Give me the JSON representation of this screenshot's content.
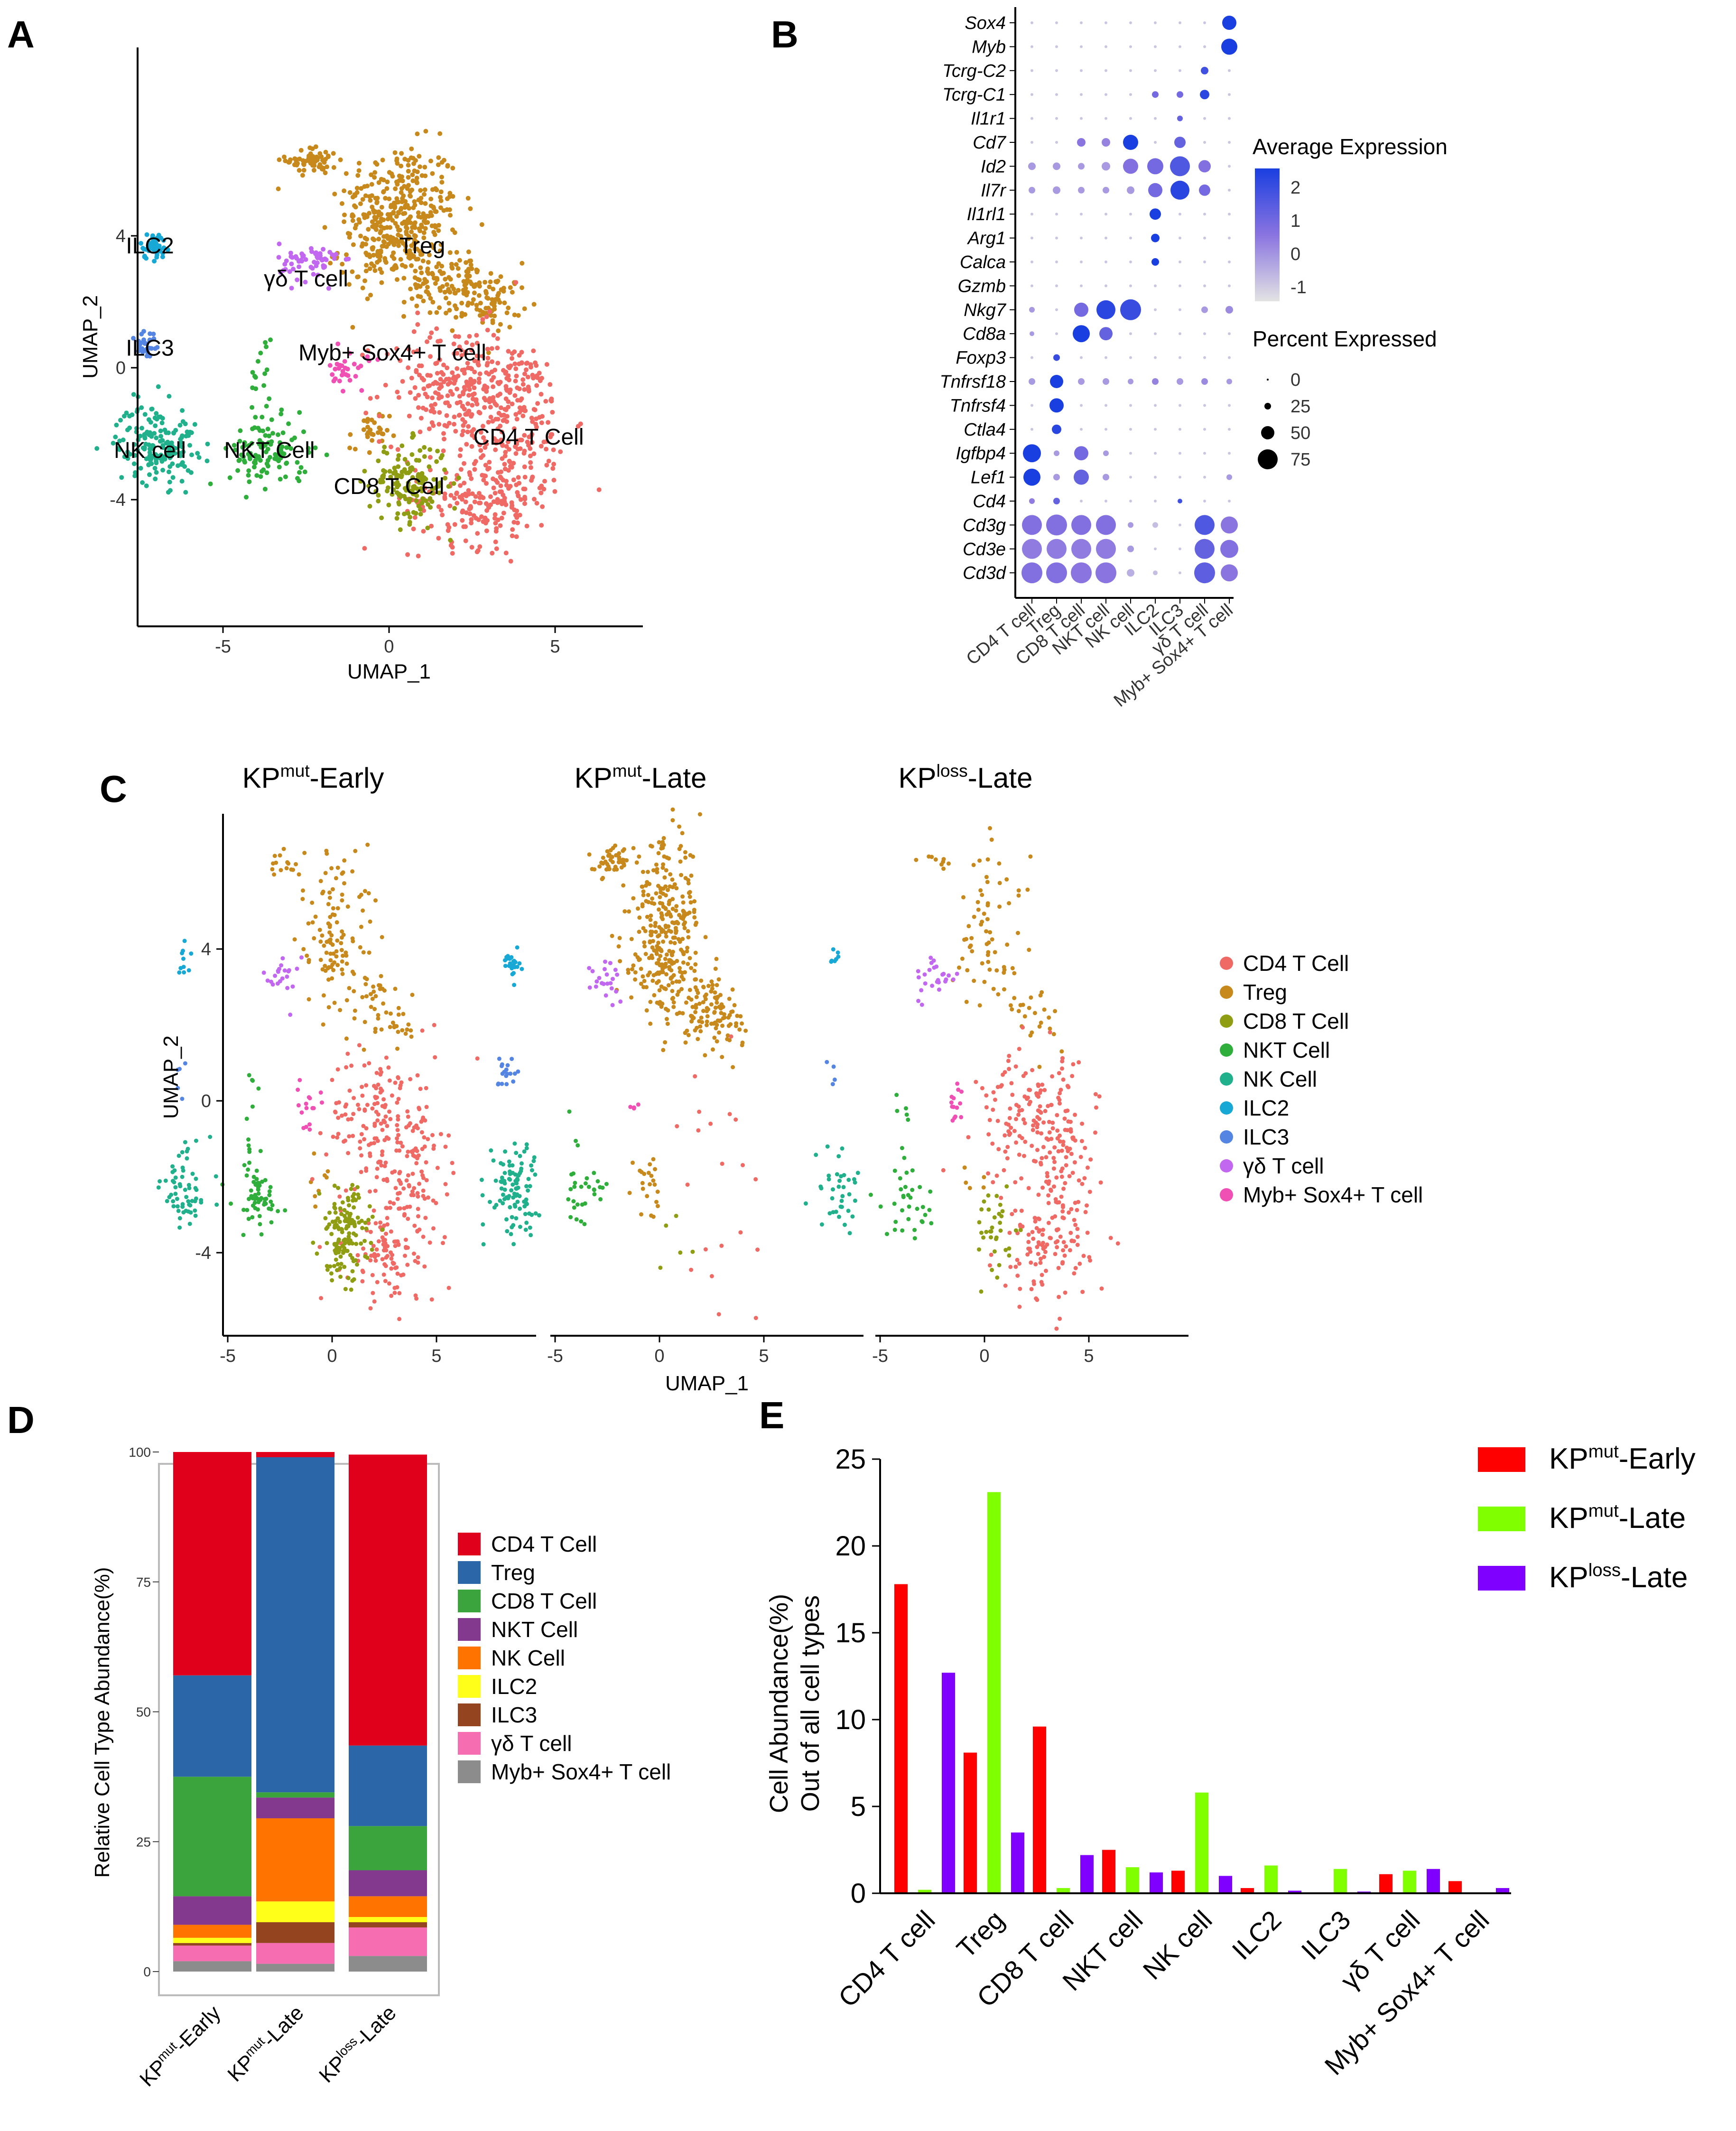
{
  "panels": {
    "A": "A",
    "B": "B",
    "C": "C",
    "D": "D",
    "E": "E"
  },
  "panel_a": {
    "xlabel": "UMAP_1",
    "ylabel": "UMAP_2",
    "xticks": [
      "-5",
      "0",
      "5"
    ],
    "yticks": [
      "4",
      "0",
      "-4"
    ],
    "cluster_labels": [
      {
        "text": "ILC2",
        "x": -7.2,
        "y": 3.7
      },
      {
        "text": "γδ T cell",
        "x": -2.5,
        "y": 2.7
      },
      {
        "text": "Treg",
        "x": 1,
        "y": 3.7
      },
      {
        "text": "ILC3",
        "x": -7.2,
        "y": 0.6
      },
      {
        "text": "Myb+ Sox4+ T cell",
        "x": 0.1,
        "y": 0.45
      },
      {
        "text": "CD4 T Cell",
        "x": 4.2,
        "y": -2.1
      },
      {
        "text": "NK cell",
        "x": -7.2,
        "y": -2.5
      },
      {
        "text": "NKT Cell",
        "x": -3.6,
        "y": -2.5
      },
      {
        "text": "CD8 T Cell",
        "x": 0,
        "y": -3.6
      }
    ]
  },
  "panel_b": {
    "genes": [
      "Sox4",
      "Myb",
      "Tcrg-C2",
      "Tcrg-C1",
      "Il1r1",
      "Cd7",
      "Id2",
      "Il7r",
      "Il1rl1",
      "Arg1",
      "Calca",
      "Gzmb",
      "Nkg7",
      "Cd8a",
      "Foxp3",
      "Tnfrsf18",
      "Tnfrsf4",
      "Ctla4",
      "Igfbp4",
      "Lef1",
      "Cd4",
      "Cd3g",
      "Cd3e",
      "Cd3d"
    ],
    "cell_types": [
      "CD4 T cell",
      "Treg",
      "CD8 T cell",
      "NKT cell",
      "NK cell",
      "ILC2",
      "ILC3",
      "γδ T cell",
      "Myb+ Sox4+ T cell"
    ],
    "legend_expr_title": "Average Expression",
    "legend_expr_ticks": [
      "2",
      "1",
      "0",
      "-1"
    ],
    "legend_pct_title": "Percent Expressed",
    "legend_pct_ticks": [
      "0",
      "25",
      "50",
      "75"
    ]
  },
  "panel_c": {
    "titles": [
      "KP^mut-Early",
      "KP^mut-Late",
      "KP^loss-Late"
    ],
    "title_parts": [
      {
        "pre": "KP",
        "sup": "mut",
        "post": "-Early"
      },
      {
        "pre": "KP",
        "sup": "mut",
        "post": "-Late"
      },
      {
        "pre": "KP",
        "sup": "loss",
        "post": "-Late"
      }
    ],
    "xlabel": "UMAP_1",
    "ylabel": "UMAP_2",
    "xticks": [
      "-5",
      "0",
      "5"
    ],
    "yticks": [
      "4",
      "0",
      "-4"
    ],
    "legend": [
      {
        "label": "CD4 T Cell",
        "color": "#ef6a65"
      },
      {
        "label": "Treg",
        "color": "#c8891c"
      },
      {
        "label": "CD8 T Cell",
        "color": "#8f9d12"
      },
      {
        "label": "NKT Cell",
        "color": "#2fae3c"
      },
      {
        "label": "NK Cell",
        "color": "#20b08c"
      },
      {
        "label": "ILC2",
        "color": "#18a8d6"
      },
      {
        "label": "ILC3",
        "color": "#5585e3"
      },
      {
        "label": "γδ T cell",
        "color": "#c267f0"
      },
      {
        "label": "Myb+ Sox4+ T cell",
        "color": "#f050b4"
      }
    ]
  },
  "chart_data": [
    {
      "type": "bar",
      "stacked": true,
      "title": "",
      "ylabel": "Relative Cell Type Abundance(%)",
      "ylim": [
        0,
        100
      ],
      "yticks": [
        "0",
        "25",
        "50",
        "75",
        "100"
      ],
      "categories": [
        "KPmut-Early",
        "KPmut-Late",
        "KPloss-Late"
      ],
      "category_parts": [
        {
          "pre": "KP",
          "sup": "mut",
          "post": "-Early"
        },
        {
          "pre": "KP",
          "sup": "mut",
          "post": "-Late"
        },
        {
          "pre": "KP",
          "sup": "loss",
          "post": "-Late"
        }
      ],
      "series": [
        {
          "name": "CD4 T Cell",
          "color": "#e0001b",
          "values": [
            43,
            1,
            56
          ]
        },
        {
          "name": "Treg",
          "color": "#2b66a8",
          "values": [
            19.5,
            64.5,
            15.5
          ]
        },
        {
          "name": "CD8 T Cell",
          "color": "#3ca43c",
          "values": [
            23,
            1,
            8.5
          ]
        },
        {
          "name": "NKT Cell",
          "color": "#833a8e",
          "values": [
            5.5,
            4,
            5
          ]
        },
        {
          "name": "NK Cell",
          "color": "#ff7300",
          "values": [
            2.5,
            16,
            4
          ]
        },
        {
          "name": "ILC2",
          "color": "#ffff1a",
          "values": [
            1,
            4,
            1
          ]
        },
        {
          "name": "ILC3",
          "color": "#94441e",
          "values": [
            0.5,
            4,
            1
          ]
        },
        {
          "name": "γδ T cell",
          "color": "#f66db2",
          "values": [
            3,
            4,
            5.5
          ]
        },
        {
          "name": "Myb+ Sox4+ T cell",
          "color": "#8c8c8c",
          "values": [
            2,
            1.5,
            3
          ]
        }
      ]
    },
    {
      "type": "bar",
      "title": "",
      "ylabel": "Cell Abundance(%) Out of all cell types",
      "ylabel_lines": [
        "Cell Abundance(%)",
        "Out of all cell types"
      ],
      "ylim": [
        0,
        25
      ],
      "yticks": [
        "0",
        "5",
        "10",
        "15",
        "20",
        "25"
      ],
      "categories": [
        "CD4 T cell",
        "Treg",
        "CD8 T cell",
        "NKT cell",
        "NK cell",
        "ILC2",
        "ILC3",
        "γδ T cell",
        "Myb+ Sox4+ T cell"
      ],
      "series": [
        {
          "name": "KPmut-Early",
          "parts": {
            "pre": "KP",
            "sup": "mut",
            "post": "-Early"
          },
          "color": "#ff0000",
          "values": [
            17.8,
            8.1,
            9.6,
            2.5,
            1.3,
            0.3,
            0.05,
            1.1,
            0.7
          ]
        },
        {
          "name": "KPmut-Late",
          "parts": {
            "pre": "KP",
            "sup": "mut",
            "post": "-Late"
          },
          "color": "#7fff00",
          "values": [
            0.2,
            23.1,
            0.3,
            1.5,
            5.8,
            1.6,
            1.4,
            1.3,
            0.05
          ]
        },
        {
          "name": "KPloss-Late",
          "parts": {
            "pre": "KP",
            "sup": "loss",
            "post": "-Late"
          },
          "color": "#7f00ff",
          "values": [
            12.7,
            3.5,
            2.2,
            1.2,
            1.0,
            0.15,
            0.1,
            1.4,
            0.3
          ]
        }
      ]
    }
  ]
}
